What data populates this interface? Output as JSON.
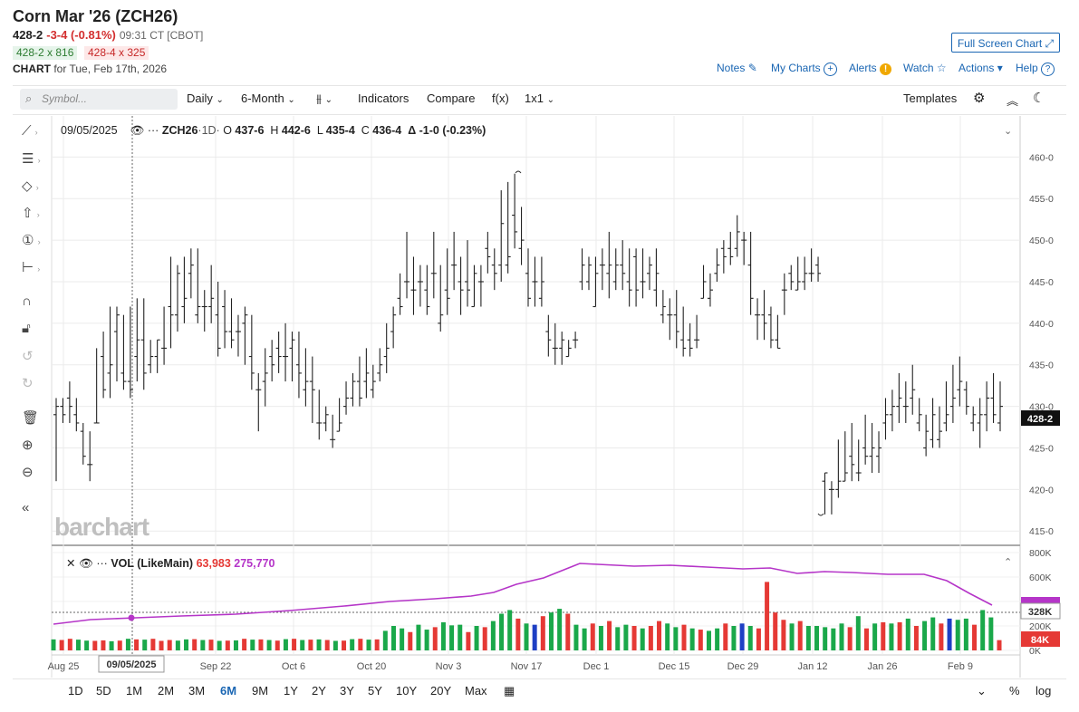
{
  "header": {
    "title": "Corn Mar '26 (ZCH26)",
    "last": "428-2",
    "change": "-3-4 (-0.81%)",
    "time": "09:31 CT [CBOT]",
    "bid": "428-2 x 816",
    "ask": "428-4 x 325",
    "chart_label": "CHART",
    "chart_for": "for Tue, Feb 17th, 2026",
    "full_screen": "Full Screen Chart",
    "links": {
      "notes": "Notes",
      "my_charts": "My Charts",
      "alerts": "Alerts",
      "watch": "Watch",
      "actions": "Actions",
      "help": "Help"
    }
  },
  "toolbar": {
    "search_placeholder": "Symbol...",
    "interval": "Daily",
    "range": "6-Month",
    "indicators": "Indicators",
    "compare": "Compare",
    "fx": "f(x)",
    "layout": "1x1",
    "templates": "Templates"
  },
  "legend": {
    "date": "09/05/2025",
    "symbol": "ZCH26",
    "interval": "·1D·",
    "o_label": "O",
    "open": "437-6",
    "h_label": "H",
    "high": "442-6",
    "l_label": "L",
    "low": "435-4",
    "c_label": "C",
    "close": "436-4",
    "delta": "Δ -1-0 (-0.23%)"
  },
  "volume_legend": {
    "name": "VOL (LikeMain)",
    "vol": "63,983",
    "avg": "275,770"
  },
  "watermark": "barchart",
  "price_badge": "428-2",
  "vol_badge_1": "328K",
  "vol_badge_2": "84K",
  "crosshair_date": "09/05/2025",
  "colors": {
    "up": "#1aa84a",
    "down": "#e53935",
    "neutral": "#1e3fc4",
    "avg": "#b535c8",
    "link": "#1a66b3"
  },
  "range_buttons": [
    "1D",
    "5D",
    "1M",
    "2M",
    "3M",
    "6M",
    "9M",
    "1Y",
    "2Y",
    "3Y",
    "5Y",
    "10Y",
    "20Y",
    "Max"
  ],
  "range_active": "6M",
  "bottom_right": {
    "pct": "%",
    "log": "log"
  },
  "chart_data": {
    "type": "ohlc",
    "price_axis": {
      "ticks": [
        "460-0",
        "455-0",
        "450-0",
        "445-0",
        "440-0",
        "435-0",
        "430-0",
        "425-0",
        "420-0",
        "415-0"
      ],
      "range": [
        413.5,
        462
      ]
    },
    "volume_axis": {
      "ticks": [
        "800K",
        "600K",
        "400K",
        "200K",
        "0K"
      ],
      "range": [
        0,
        800000
      ]
    },
    "x_labels": [
      "Aug 25",
      "Sep 22",
      "Oct 6",
      "Oct 20",
      "Nov 3",
      "Nov 17",
      "Dec 1",
      "Dec 15",
      "Dec 29",
      "Jan 12",
      "Jan 26",
      "Feb 9"
    ],
    "bars": [
      [
        429,
        431,
        421,
        430
      ],
      [
        430,
        431,
        428,
        429
      ],
      [
        431,
        433,
        428,
        430
      ],
      [
        429,
        431,
        427,
        428
      ],
      [
        427,
        428,
        423,
        424
      ],
      [
        423,
        427,
        421,
        423
      ],
      [
        428,
        437,
        428,
        428
      ],
      [
        436,
        439,
        431,
        432
      ],
      [
        434,
        442,
        431,
        435
      ],
      [
        439,
        442,
        433,
        441
      ],
      [
        434,
        441,
        432,
        433
      ],
      [
        433,
        442,
        431,
        432
      ],
      [
        436,
        443,
        433,
        438
      ],
      [
        438,
        443,
        432,
        434
      ],
      [
        435,
        438,
        434,
        436
      ],
      [
        436,
        438,
        434,
        438
      ],
      [
        437,
        442,
        435,
        437
      ],
      [
        442,
        448,
        437,
        441
      ],
      [
        441,
        447,
        439,
        446
      ],
      [
        442,
        448,
        440,
        443
      ],
      [
        446,
        449,
        443,
        447
      ],
      [
        441,
        449,
        440,
        442
      ],
      [
        442,
        444,
        439,
        442
      ],
      [
        442,
        447,
        440,
        443
      ],
      [
        441,
        445,
        436,
        437
      ],
      [
        442,
        444,
        437,
        439
      ],
      [
        439,
        443,
        437,
        438
      ],
      [
        439,
        441,
        436,
        439
      ],
      [
        440,
        442,
        435,
        441
      ],
      [
        436,
        441,
        432,
        434
      ],
      [
        432,
        434,
        427,
        432
      ],
      [
        433,
        437,
        430,
        434
      ],
      [
        436,
        438,
        433,
        435
      ],
      [
        437,
        439,
        434,
        436
      ],
      [
        436,
        440,
        433,
        436
      ],
      [
        437,
        439,
        433,
        438
      ],
      [
        435,
        439,
        431,
        434
      ],
      [
        432,
        437,
        430,
        433
      ],
      [
        433,
        436,
        428,
        432
      ],
      [
        428,
        432,
        426,
        428
      ],
      [
        428,
        430,
        427,
        429
      ],
      [
        426,
        429,
        425,
        426
      ],
      [
        427,
        431,
        427,
        428
      ],
      [
        430,
        433,
        429,
        431
      ],
      [
        431,
        434,
        430,
        433
      ],
      [
        433,
        436,
        430,
        431
      ],
      [
        433,
        437,
        431,
        434
      ],
      [
        432,
        435,
        431,
        433
      ],
      [
        434,
        437,
        433,
        435
      ],
      [
        436,
        440,
        434,
        437
      ],
      [
        439,
        442,
        437,
        441
      ],
      [
        443,
        446,
        441,
        442
      ],
      [
        445,
        451,
        443,
        445
      ],
      [
        444,
        448,
        441,
        444
      ],
      [
        445,
        447,
        442,
        445
      ],
      [
        444,
        447,
        441,
        442
      ],
      [
        446,
        451,
        443,
        446
      ],
      [
        440,
        447,
        439,
        441
      ],
      [
        444,
        449,
        441,
        443
      ],
      [
        447,
        451,
        444,
        447
      ],
      [
        445,
        448,
        441,
        444
      ],
      [
        445,
        450,
        442,
        444
      ],
      [
        442,
        447,
        442,
        446
      ],
      [
        445,
        447,
        442,
        445
      ],
      [
        449,
        451,
        446,
        448
      ],
      [
        447,
        449,
        444,
        446
      ],
      [
        447,
        456,
        445,
        452
      ],
      [
        447,
        457,
        446,
        448
      ],
      [
        453,
        458,
        449,
        451
      ],
      [
        449,
        454,
        447,
        450
      ],
      [
        446,
        449,
        442,
        443
      ],
      [
        445,
        448,
        442,
        445
      ],
      [
        443,
        448,
        442,
        445
      ],
      [
        439,
        441,
        436,
        438
      ],
      [
        437,
        440,
        435,
        437
      ],
      [
        437,
        439,
        435,
        438
      ],
      [
        436,
        438,
        436,
        437
      ],
      [
        438,
        439,
        437,
        438
      ],
      [
        445,
        449,
        444,
        447
      ],
      [
        445,
        448,
        444,
        447
      ],
      [
        442,
        448,
        442,
        446
      ],
      [
        447,
        449,
        444,
        447
      ],
      [
        446,
        451,
        443,
        447
      ],
      [
        445,
        449,
        444,
        447
      ],
      [
        447,
        450,
        444,
        446
      ],
      [
        445,
        449,
        442,
        444
      ],
      [
        448,
        449,
        442,
        444
      ],
      [
        445,
        449,
        443,
        445
      ],
      [
        446,
        448,
        444,
        447
      ],
      [
        444,
        449,
        442,
        446
      ],
      [
        441,
        444,
        440,
        442
      ],
      [
        441,
        443,
        438,
        441
      ],
      [
        441,
        444,
        437,
        439
      ],
      [
        438,
        442,
        436,
        437
      ],
      [
        438,
        440,
        436,
        437
      ],
      [
        438,
        441,
        437,
        438
      ],
      [
        443,
        447,
        443,
        445
      ],
      [
        443,
        446,
        442,
        444
      ],
      [
        446,
        449,
        445,
        447
      ],
      [
        449,
        450,
        446,
        448
      ],
      [
        449,
        451,
        447,
        448
      ],
      [
        449,
        453,
        448,
        451
      ],
      [
        450,
        451,
        447,
        450
      ],
      [
        447,
        451,
        441,
        443
      ],
      [
        441,
        443,
        438,
        441
      ],
      [
        441,
        444,
        438,
        440
      ],
      [
        441,
        442,
        437,
        438
      ],
      [
        438,
        441,
        437,
        437
      ],
      [
        444,
        446,
        441,
        444
      ],
      [
        446,
        447,
        444,
        445
      ],
      [
        444,
        448,
        444,
        445
      ],
      [
        445,
        448,
        444,
        446
      ],
      [
        446,
        449,
        445,
        446
      ],
      [
        447,
        448,
        445,
        446
      ],
      [
        421,
        422,
        417,
        422
      ],
      [
        420,
        421,
        417,
        420
      ],
      [
        420,
        426,
        419,
        421
      ],
      [
        421,
        427,
        421,
        422
      ],
      [
        424,
        428,
        421,
        423
      ],
      [
        422,
        426,
        421,
        422
      ],
      [
        425,
        429,
        423,
        424
      ],
      [
        424,
        428,
        422,
        425
      ],
      [
        424,
        427,
        422,
        425
      ],
      [
        428,
        431,
        426,
        429
      ],
      [
        429,
        432,
        427,
        430
      ],
      [
        430,
        434,
        428,
        431
      ],
      [
        430,
        433,
        428,
        430
      ],
      [
        431,
        435,
        429,
        432
      ],
      [
        428,
        431,
        427,
        429
      ],
      [
        425,
        429,
        424,
        427
      ],
      [
        426,
        431,
        425,
        429
      ],
      [
        426,
        430,
        425,
        427
      ],
      [
        428,
        433,
        427,
        429
      ],
      [
        430,
        435,
        428,
        431
      ],
      [
        432,
        436,
        430,
        433
      ],
      [
        432,
        433,
        429,
        430
      ],
      [
        428,
        430,
        427,
        429
      ],
      [
        428,
        431,
        425,
        429
      ],
      [
        429,
        433,
        427,
        431
      ],
      [
        431,
        434,
        428,
        429
      ],
      [
        428,
        433,
        427,
        430
      ]
    ],
    "volume": [
      [
        "u",
        90
      ],
      [
        "d",
        85
      ],
      [
        "d",
        95
      ],
      [
        "u",
        88
      ],
      [
        "u",
        80
      ],
      [
        "d",
        78
      ],
      [
        "d",
        82
      ],
      [
        "u",
        75
      ],
      [
        "d",
        80
      ],
      [
        "u",
        95
      ],
      [
        "d",
        90
      ],
      [
        "u",
        88
      ],
      [
        "d",
        95
      ],
      [
        "d",
        78
      ],
      [
        "d",
        85
      ],
      [
        "u",
        80
      ],
      [
        "u",
        90
      ],
      [
        "d",
        92
      ],
      [
        "u",
        85
      ],
      [
        "d",
        88
      ],
      [
        "u",
        78
      ],
      [
        "d",
        80
      ],
      [
        "u",
        82
      ],
      [
        "d",
        95
      ],
      [
        "u",
        88
      ],
      [
        "d",
        90
      ],
      [
        "u",
        85
      ],
      [
        "d",
        80
      ],
      [
        "u",
        92
      ],
      [
        "d",
        95
      ],
      [
        "u",
        85
      ],
      [
        "d",
        88
      ],
      [
        "u",
        90
      ],
      [
        "d",
        85
      ],
      [
        "u",
        78
      ],
      [
        "d",
        80
      ],
      [
        "u",
        92
      ],
      [
        "d",
        95
      ],
      [
        "u",
        88
      ],
      [
        "d",
        90
      ],
      [
        "u",
        160
      ],
      [
        "u",
        200
      ],
      [
        "u",
        180
      ],
      [
        "d",
        150
      ],
      [
        "u",
        210
      ],
      [
        "u",
        170
      ],
      [
        "d",
        190
      ],
      [
        "u",
        230
      ],
      [
        "u",
        205
      ],
      [
        "u",
        210
      ],
      [
        "d",
        150
      ],
      [
        "u",
        200
      ],
      [
        "d",
        190
      ],
      [
        "u",
        240
      ],
      [
        "u",
        300
      ],
      [
        "u",
        330
      ],
      [
        "d",
        260
      ],
      [
        "u",
        220
      ],
      [
        "n",
        210
      ],
      [
        "d",
        280
      ],
      [
        "u",
        310
      ],
      [
        "u",
        340
      ],
      [
        "d",
        300
      ],
      [
        "u",
        210
      ],
      [
        "u",
        180
      ],
      [
        "d",
        220
      ],
      [
        "u",
        200
      ],
      [
        "d",
        240
      ],
      [
        "u",
        190
      ],
      [
        "u",
        210
      ],
      [
        "d",
        200
      ],
      [
        "u",
        180
      ],
      [
        "d",
        200
      ],
      [
        "d",
        240
      ],
      [
        "u",
        220
      ],
      [
        "u",
        190
      ],
      [
        "d",
        210
      ],
      [
        "u",
        180
      ],
      [
        "d",
        170
      ],
      [
        "u",
        160
      ],
      [
        "u",
        180
      ],
      [
        "d",
        220
      ],
      [
        "u",
        200
      ],
      [
        "n",
        220
      ],
      [
        "u",
        200
      ],
      [
        "d",
        180
      ],
      [
        "d",
        560
      ],
      [
        "d",
        310
      ],
      [
        "d",
        250
      ],
      [
        "u",
        220
      ],
      [
        "d",
        240
      ],
      [
        "u",
        200
      ],
      [
        "u",
        200
      ],
      [
        "u",
        190
      ],
      [
        "u",
        180
      ],
      [
        "u",
        220
      ],
      [
        "d",
        190
      ],
      [
        "u",
        280
      ],
      [
        "d",
        180
      ],
      [
        "u",
        220
      ],
      [
        "d",
        230
      ],
      [
        "u",
        220
      ],
      [
        "d",
        230
      ],
      [
        "u",
        260
      ],
      [
        "d",
        200
      ],
      [
        "u",
        240
      ],
      [
        "u",
        270
      ],
      [
        "d",
        220
      ],
      [
        "n",
        260
      ],
      [
        "u",
        250
      ],
      [
        "u",
        260
      ],
      [
        "d",
        210
      ],
      [
        "u",
        330
      ],
      [
        "u",
        270
      ],
      [
        "d",
        84
      ]
    ],
    "volume_avg_trend": "rising from ~230K to ~760K then falling to ~330K"
  }
}
